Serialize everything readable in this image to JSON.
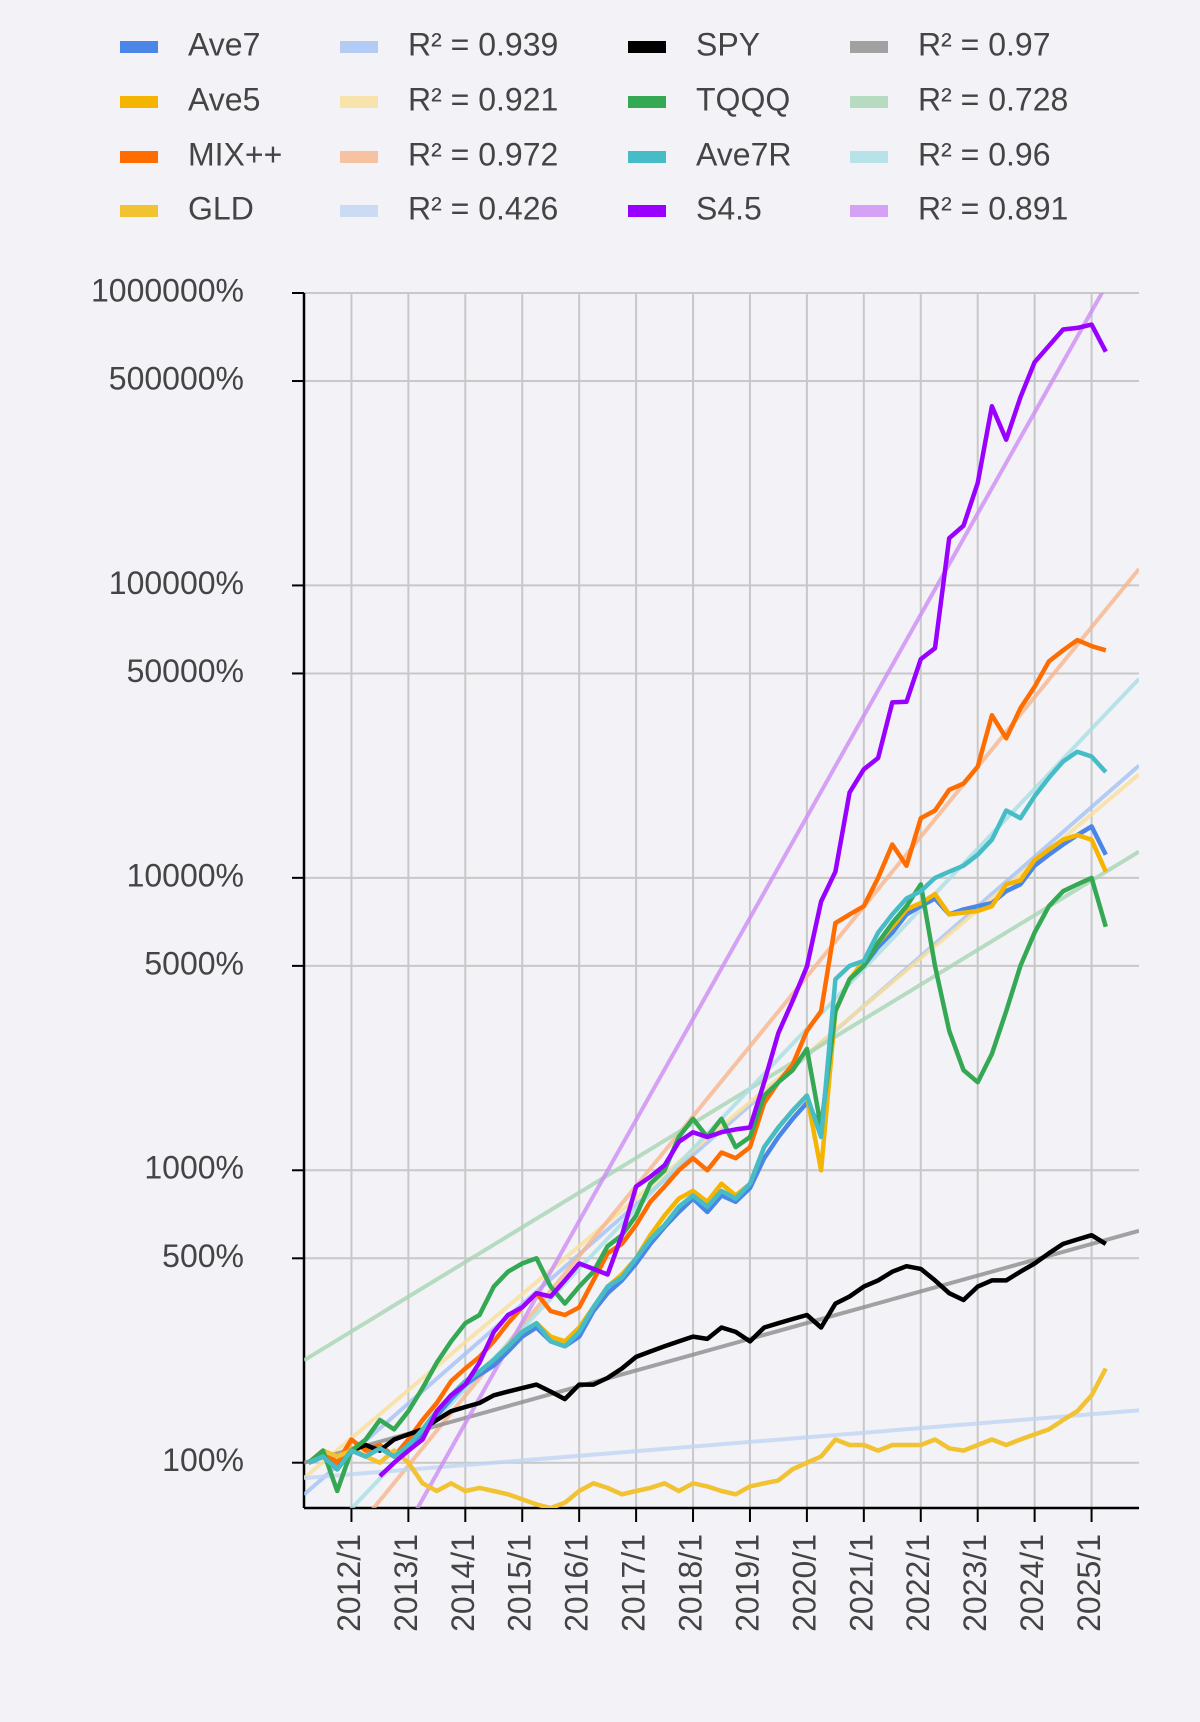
{
  "chart_data": {
    "type": "line",
    "log_y": true,
    "grid": true,
    "legend": {
      "location": "upper center",
      "ncol": 4
    },
    "xlim": [
      "2011/3",
      "2025/11"
    ],
    "xticks": [
      "2012/1",
      "2013/1",
      "2014/1",
      "2015/1",
      "2016/1",
      "2017/1",
      "2018/1",
      "2019/1",
      "2020/1",
      "2021/1",
      "2022/1",
      "2023/1",
      "2024/1",
      "2025/1"
    ],
    "ylim": [
      70,
      1000000
    ],
    "yticks": [
      {
        "value": 100,
        "label": "100%"
      },
      {
        "value": 500,
        "label": "500%"
      },
      {
        "value": 1000,
        "label": "1000%"
      },
      {
        "value": 5000,
        "label": "5000%"
      },
      {
        "value": 10000,
        "label": "10000%"
      },
      {
        "value": 50000,
        "label": "50000%"
      },
      {
        "value": 100000,
        "label": "100000%"
      },
      {
        "value": 500000,
        "label": "500000%"
      },
      {
        "value": 1000000,
        "label": "1000000%"
      }
    ],
    "x": [
      "2011/4",
      "2011/7",
      "2011/10",
      "2012/1",
      "2012/4",
      "2012/7",
      "2012/10",
      "2013/1",
      "2013/4",
      "2013/7",
      "2013/10",
      "2014/1",
      "2014/4",
      "2014/7",
      "2014/10",
      "2015/1",
      "2015/4",
      "2015/7",
      "2015/10",
      "2016/1",
      "2016/4",
      "2016/7",
      "2016/10",
      "2017/1",
      "2017/4",
      "2017/7",
      "2017/10",
      "2018/1",
      "2018/4",
      "2018/7",
      "2018/10",
      "2019/1",
      "2019/4",
      "2019/7",
      "2019/10",
      "2020/1",
      "2020/4",
      "2020/7",
      "2020/10",
      "2021/1",
      "2021/4",
      "2021/7",
      "2021/10",
      "2022/1",
      "2022/4",
      "2022/7",
      "2022/10",
      "2023/1",
      "2023/4",
      "2023/7",
      "2023/10",
      "2024/1",
      "2024/4",
      "2024/7",
      "2024/10",
      "2025/1",
      "2025/4"
    ],
    "series": [
      {
        "name": "Ave7",
        "color": "#4a86e8",
        "values": [
          100,
          105,
          95,
          110,
          105,
          112,
          105,
          112,
          125,
          145,
          165,
          185,
          200,
          215,
          240,
          270,
          290,
          260,
          250,
          270,
          330,
          380,
          420,
          480,
          560,
          640,
          720,
          800,
          720,
          820,
          780,
          870,
          1100,
          1300,
          1500,
          1700,
          1400,
          3500,
          4500,
          5000,
          5800,
          6500,
          7500,
          8000,
          8500,
          7500,
          7800,
          8000,
          8200,
          9000,
          9500,
          11000,
          12000,
          13000,
          14000,
          15000,
          12000
        ]
      },
      {
        "name": "Ave5",
        "color": "#f4b400",
        "values": [
          100,
          108,
          95,
          112,
          105,
          115,
          105,
          115,
          130,
          150,
          170,
          190,
          205,
          225,
          250,
          280,
          300,
          270,
          260,
          290,
          340,
          400,
          440,
          500,
          600,
          700,
          800,
          850,
          780,
          900,
          820,
          900,
          1200,
          1400,
          1600,
          1800,
          1000,
          3500,
          4500,
          5200,
          6000,
          6800,
          7800,
          8200,
          8800,
          7500,
          7600,
          7700,
          8000,
          9500,
          9800,
          11500,
          12500,
          13500,
          14000,
          13500,
          10500
        ]
      },
      {
        "name": "MIX++",
        "color": "#ff6d00",
        "values": [
          100,
          110,
          100,
          120,
          110,
          115,
          105,
          120,
          140,
          160,
          190,
          210,
          230,
          260,
          300,
          340,
          380,
          330,
          320,
          340,
          420,
          520,
          560,
          650,
          780,
          880,
          1000,
          1100,
          1000,
          1150,
          1100,
          1200,
          1700,
          2000,
          2300,
          3000,
          3500,
          7000,
          7500,
          8000,
          10000,
          13000,
          11000,
          16000,
          17000,
          20000,
          21000,
          24000,
          36000,
          30000,
          38000,
          45000,
          55000,
          60000,
          65000,
          62000,
          60000
        ]
      },
      {
        "name": "GLD",
        "color": "#f1c232",
        "values": [
          100,
          110,
          105,
          110,
          105,
          100,
          110,
          100,
          85,
          80,
          85,
          80,
          82,
          80,
          78,
          75,
          72,
          70,
          73,
          80,
          85,
          82,
          78,
          80,
          82,
          85,
          80,
          85,
          83,
          80,
          78,
          83,
          85,
          87,
          95,
          100,
          105,
          120,
          115,
          115,
          110,
          115,
          115,
          115,
          120,
          112,
          110,
          115,
          120,
          115,
          120,
          125,
          130,
          140,
          150,
          170,
          210
        ]
      },
      {
        "name": "R² = 0.939",
        "color": "#a4c2f4",
        "trend": true,
        "x": [
          "2011/3",
          "2025/11"
        ],
        "values": [
          77.8,
          24200
        ]
      },
      {
        "name": "R² = 0.921",
        "color": "#f9de9a",
        "trend": true,
        "x": [
          "2011/3",
          "2025/11"
        ],
        "values": [
          88.6,
          22600
        ]
      },
      {
        "name": "R² = 0.972",
        "color": "#f7b58c",
        "trend": true,
        "x": [
          "2011/3",
          "2025/11"
        ],
        "values": [
          35.7,
          113800
        ]
      },
      {
        "name": "R² = 0.426",
        "color": "#c0d4f2",
        "trend": true,
        "x": [
          "2011/3",
          "2025/11"
        ],
        "values": [
          88.6,
          151
        ]
      },
      {
        "name": "SPY",
        "color": "#000000",
        "values": [
          100,
          105,
          95,
          110,
          115,
          110,
          120,
          125,
          130,
          140,
          150,
          155,
          160,
          170,
          175,
          180,
          185,
          175,
          165,
          185,
          185,
          195,
          210,
          230,
          240,
          250,
          260,
          270,
          265,
          290,
          280,
          260,
          290,
          300,
          310,
          320,
          290,
          350,
          370,
          400,
          420,
          450,
          470,
          460,
          420,
          380,
          360,
          400,
          420,
          420,
          450,
          480,
          520,
          560,
          580,
          600,
          560
        ]
      },
      {
        "name": "TQQQ",
        "color": "#34a853",
        "values": [
          100,
          110,
          80,
          110,
          120,
          140,
          130,
          150,
          180,
          220,
          260,
          300,
          320,
          400,
          450,
          480,
          500,
          400,
          350,
          400,
          450,
          550,
          600,
          700,
          900,
          1000,
          1300,
          1500,
          1300,
          1500,
          1200,
          1300,
          1800,
          2000,
          2200,
          2600,
          1400,
          3500,
          4500,
          5000,
          6000,
          7000,
          8000,
          9500,
          5000,
          3000,
          2200,
          2000,
          2500,
          3500,
          5000,
          6500,
          8000,
          9000,
          9500,
          10000,
          6800
        ]
      },
      {
        "name": "Ave7R",
        "color": "#46bdc6",
        "values": [
          100,
          105,
          95,
          110,
          105,
          112,
          105,
          115,
          130,
          150,
          170,
          190,
          205,
          225,
          250,
          280,
          300,
          260,
          250,
          280,
          340,
          400,
          430,
          500,
          580,
          650,
          750,
          820,
          750,
          850,
          800,
          900,
          1200,
          1400,
          1600,
          1800,
          1300,
          4500,
          5000,
          5200,
          6500,
          7500,
          8500,
          9000,
          10000,
          10500,
          11000,
          12000,
          13500,
          17000,
          16000,
          19000,
          22000,
          25000,
          27000,
          26000,
          23000
        ]
      },
      {
        "name": "S4.5",
        "color": "#9900ff",
        "values": [
          null,
          null,
          null,
          null,
          null,
          90,
          100,
          110,
          120,
          150,
          170,
          185,
          220,
          280,
          320,
          340,
          380,
          370,
          420,
          480,
          460,
          440,
          600,
          880,
          950,
          1040,
          1250,
          1350,
          1300,
          1350,
          1380,
          1400,
          2000,
          2950,
          3800,
          4970,
          8300,
          10500,
          19600,
          23500,
          25700,
          39800,
          40000,
          56000,
          61000,
          145000,
          160000,
          224000,
          410000,
          315000,
          440000,
          580000,
          660000,
          750000,
          760000,
          780000,
          630000
        ]
      },
      {
        "name": "R² = 0.97",
        "color": "#8c8c8c",
        "trend": true,
        "x": [
          "2011/3",
          "2025/11"
        ],
        "values": [
          100,
          621
        ]
      },
      {
        "name": "R² = 0.728",
        "color": "#a8d5b2",
        "trend": true,
        "x": [
          "2011/3",
          "2025/11"
        ],
        "values": [
          224,
          12300
        ]
      },
      {
        "name": "R² = 0.96",
        "color": "#a8dfe3",
        "trend": true,
        "x": [
          "2011/3",
          "2025/11"
        ],
        "values": [
          47,
          47900
        ]
      },
      {
        "name": "R² = 0.891",
        "color": "#cc8cf2",
        "trend": true,
        "x": [
          "2011/3",
          "2025/11"
        ],
        "values": [
          14.3,
          1680000
        ]
      }
    ]
  }
}
